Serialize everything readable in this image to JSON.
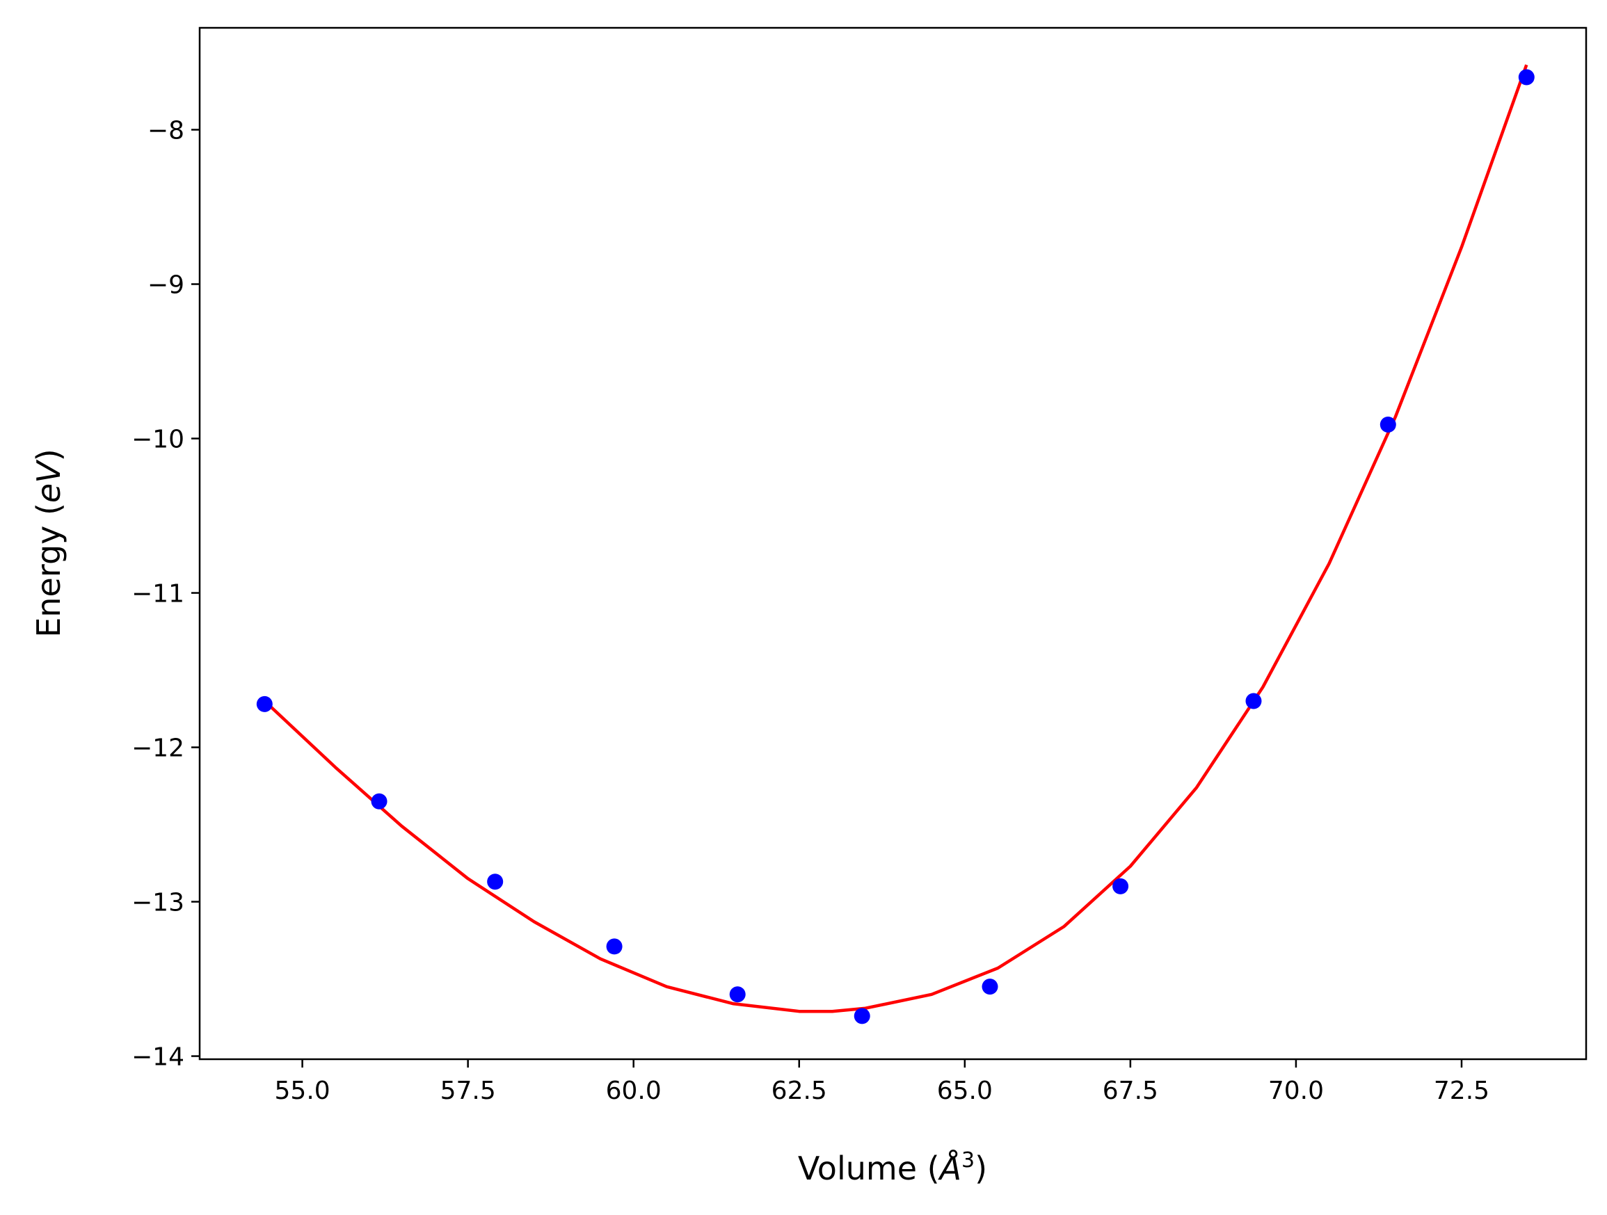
{
  "chart_data": {
    "type": "scatter",
    "title": "",
    "xlabel": {
      "prefix": "Volume (",
      "symbol": "Å",
      "sup": "3",
      "suffix": ")"
    },
    "ylabel": {
      "prefix": "Energy (",
      "unit": "eV",
      "suffix": ")"
    },
    "xlim": [
      53.45,
      74.38
    ],
    "ylim": [
      -14.02,
      -7.34
    ],
    "xticks": [
      {
        "value": 55.0,
        "label": "55.0"
      },
      {
        "value": 57.5,
        "label": "57.5"
      },
      {
        "value": 60.0,
        "label": "60.0"
      },
      {
        "value": 62.5,
        "label": "62.5"
      },
      {
        "value": 65.0,
        "label": "65.0"
      },
      {
        "value": 67.5,
        "label": "67.5"
      },
      {
        "value": 70.0,
        "label": "70.0"
      },
      {
        "value": 72.5,
        "label": "72.5"
      }
    ],
    "yticks": [
      {
        "value": -8,
        "label": "−8"
      },
      {
        "value": -9,
        "label": "−9"
      },
      {
        "value": -10,
        "label": "−10"
      },
      {
        "value": -11,
        "label": "−11"
      },
      {
        "value": -12,
        "label": "−12"
      },
      {
        "value": -13,
        "label": "−13"
      },
      {
        "value": -14,
        "label": "−14"
      }
    ],
    "grid": false,
    "series": [
      {
        "kind": "points",
        "color": "#0000ff",
        "x": [
          54.43,
          56.16,
          57.91,
          59.71,
          61.57,
          63.45,
          65.38,
          67.35,
          69.36,
          71.39,
          73.48
        ],
        "y": [
          -11.72,
          -12.35,
          -12.87,
          -13.29,
          -13.6,
          -13.74,
          -13.55,
          -12.9,
          -11.7,
          -9.91,
          -7.66
        ]
      },
      {
        "kind": "line",
        "color": "#ff0000",
        "x": [
          54.43,
          55.5,
          56.5,
          57.5,
          58.5,
          59.5,
          60.5,
          61.5,
          62.5,
          63.0,
          63.5,
          64.5,
          65.5,
          66.5,
          67.5,
          68.5,
          69.5,
          70.5,
          71.5,
          72.5,
          73.48
        ],
        "y": [
          -11.7,
          -12.13,
          -12.51,
          -12.85,
          -13.13,
          -13.37,
          -13.55,
          -13.66,
          -13.71,
          -13.71,
          -13.69,
          -13.6,
          -13.43,
          -13.16,
          -12.77,
          -12.26,
          -11.61,
          -10.81,
          -9.86,
          -8.76,
          -7.58
        ]
      }
    ]
  }
}
